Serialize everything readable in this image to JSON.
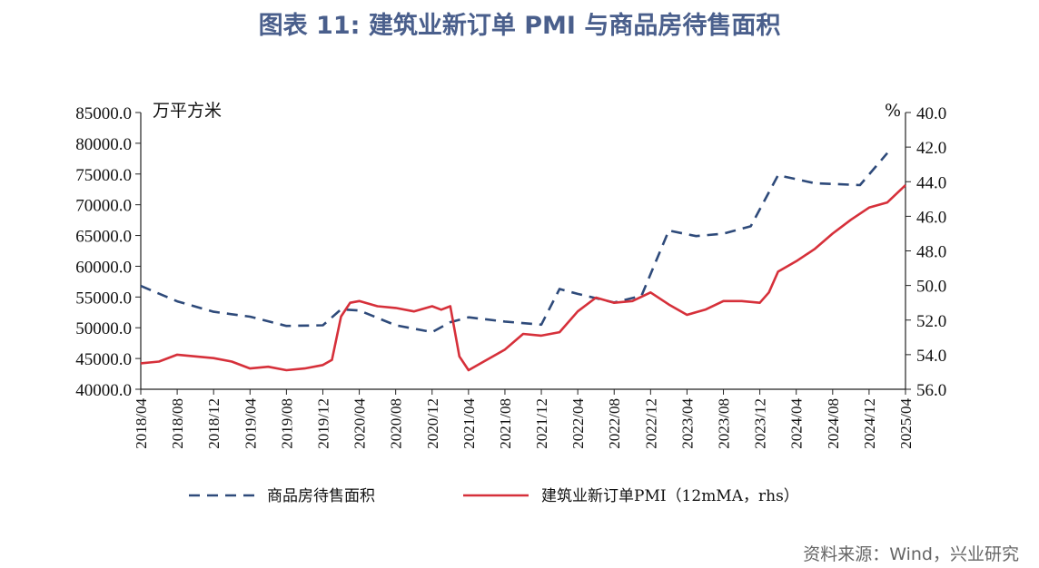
{
  "title": "图表 11: 建筑业新订单 PMI 与商品房待售面积",
  "source": "资料来源：Wind，兴业研究",
  "chart_data": {
    "type": "line",
    "left_unit": "万平方米",
    "right_unit": "%",
    "y_left": {
      "range": [
        40000,
        85000
      ],
      "ticks": [
        "85000.0",
        "80000.0",
        "75000.0",
        "70000.0",
        "65000.0",
        "60000.0",
        "55000.0",
        "50000.0",
        "45000.0",
        "40000.0"
      ]
    },
    "y_right": {
      "range": [
        40,
        56
      ],
      "inverted": true,
      "ticks": [
        "40.0",
        "42.0",
        "44.0",
        "46.0",
        "48.0",
        "50.0",
        "52.0",
        "54.0",
        "56.0"
      ]
    },
    "x_ticks": [
      "2018/04",
      "2018/08",
      "2018/12",
      "2019/04",
      "2019/08",
      "2019/12",
      "2020/04",
      "2020/08",
      "2020/12",
      "2021/04",
      "2021/08",
      "2021/12",
      "2022/04",
      "2022/08",
      "2022/12",
      "2023/04",
      "2023/08",
      "2023/12",
      "2024/04",
      "2024/08",
      "2024/12",
      "2025/04"
    ],
    "legend_position": "bottom",
    "series": [
      {
        "name": "商品房待售面积",
        "axis": "left",
        "style": "dashed",
        "color": "#2e4a7a",
        "points": [
          [
            "2018/04",
            56800
          ],
          [
            "2018/08",
            54300
          ],
          [
            "2018/12",
            52600
          ],
          [
            "2019/04",
            51800
          ],
          [
            "2019/08",
            50300
          ],
          [
            "2019/12",
            50400
          ],
          [
            "2020/02",
            53000
          ],
          [
            "2020/04",
            52800
          ],
          [
            "2020/08",
            50400
          ],
          [
            "2020/12",
            49300
          ],
          [
            "2021/02",
            50900
          ],
          [
            "2021/04",
            51700
          ],
          [
            "2021/08",
            51000
          ],
          [
            "2021/12",
            50500
          ],
          [
            "2022/02",
            56300
          ],
          [
            "2022/04",
            55500
          ],
          [
            "2022/08",
            54100
          ],
          [
            "2022/11",
            55200
          ],
          [
            "2023/02",
            65800
          ],
          [
            "2023/05",
            64900
          ],
          [
            "2023/08",
            65300
          ],
          [
            "2023/11",
            66500
          ],
          [
            "2024/02",
            74800
          ],
          [
            "2024/06",
            73500
          ],
          [
            "2024/11",
            73200
          ],
          [
            "2025/02",
            78400
          ]
        ]
      },
      {
        "name": "建筑业新订单PMI（12mMA，rhs）",
        "axis": "right",
        "style": "solid",
        "color": "#d6303a",
        "points": [
          [
            "2018/04",
            54.5
          ],
          [
            "2018/06",
            54.4
          ],
          [
            "2018/08",
            54.0
          ],
          [
            "2018/10",
            54.1
          ],
          [
            "2018/12",
            54.2
          ],
          [
            "2019/02",
            54.4
          ],
          [
            "2019/04",
            54.8
          ],
          [
            "2019/06",
            54.7
          ],
          [
            "2019/08",
            54.9
          ],
          [
            "2019/10",
            54.8
          ],
          [
            "2019/12",
            54.6
          ],
          [
            "2020/01",
            54.3
          ],
          [
            "2020/02",
            51.8
          ],
          [
            "2020/03",
            51.0
          ],
          [
            "2020/04",
            50.9
          ],
          [
            "2020/06",
            51.2
          ],
          [
            "2020/08",
            51.3
          ],
          [
            "2020/10",
            51.5
          ],
          [
            "2020/12",
            51.2
          ],
          [
            "2021/01",
            51.4
          ],
          [
            "2021/02",
            51.2
          ],
          [
            "2021/03",
            54.1
          ],
          [
            "2021/04",
            54.9
          ],
          [
            "2021/06",
            54.3
          ],
          [
            "2021/08",
            53.7
          ],
          [
            "2021/10",
            52.8
          ],
          [
            "2021/12",
            52.9
          ],
          [
            "2022/02",
            52.7
          ],
          [
            "2022/04",
            51.5
          ],
          [
            "2022/06",
            50.7
          ],
          [
            "2022/08",
            51.0
          ],
          [
            "2022/10",
            50.9
          ],
          [
            "2022/12",
            50.4
          ],
          [
            "2023/02",
            51.1
          ],
          [
            "2023/04",
            51.7
          ],
          [
            "2023/06",
            51.4
          ],
          [
            "2023/08",
            50.9
          ],
          [
            "2023/10",
            50.9
          ],
          [
            "2023/12",
            51.0
          ],
          [
            "2024/01",
            50.4
          ],
          [
            "2024/02",
            49.2
          ],
          [
            "2024/04",
            48.6
          ],
          [
            "2024/06",
            47.9
          ],
          [
            "2024/08",
            47.0
          ],
          [
            "2024/10",
            46.2
          ],
          [
            "2024/12",
            45.5
          ],
          [
            "2025/02",
            45.2
          ],
          [
            "2025/04",
            44.2
          ]
        ]
      }
    ]
  }
}
